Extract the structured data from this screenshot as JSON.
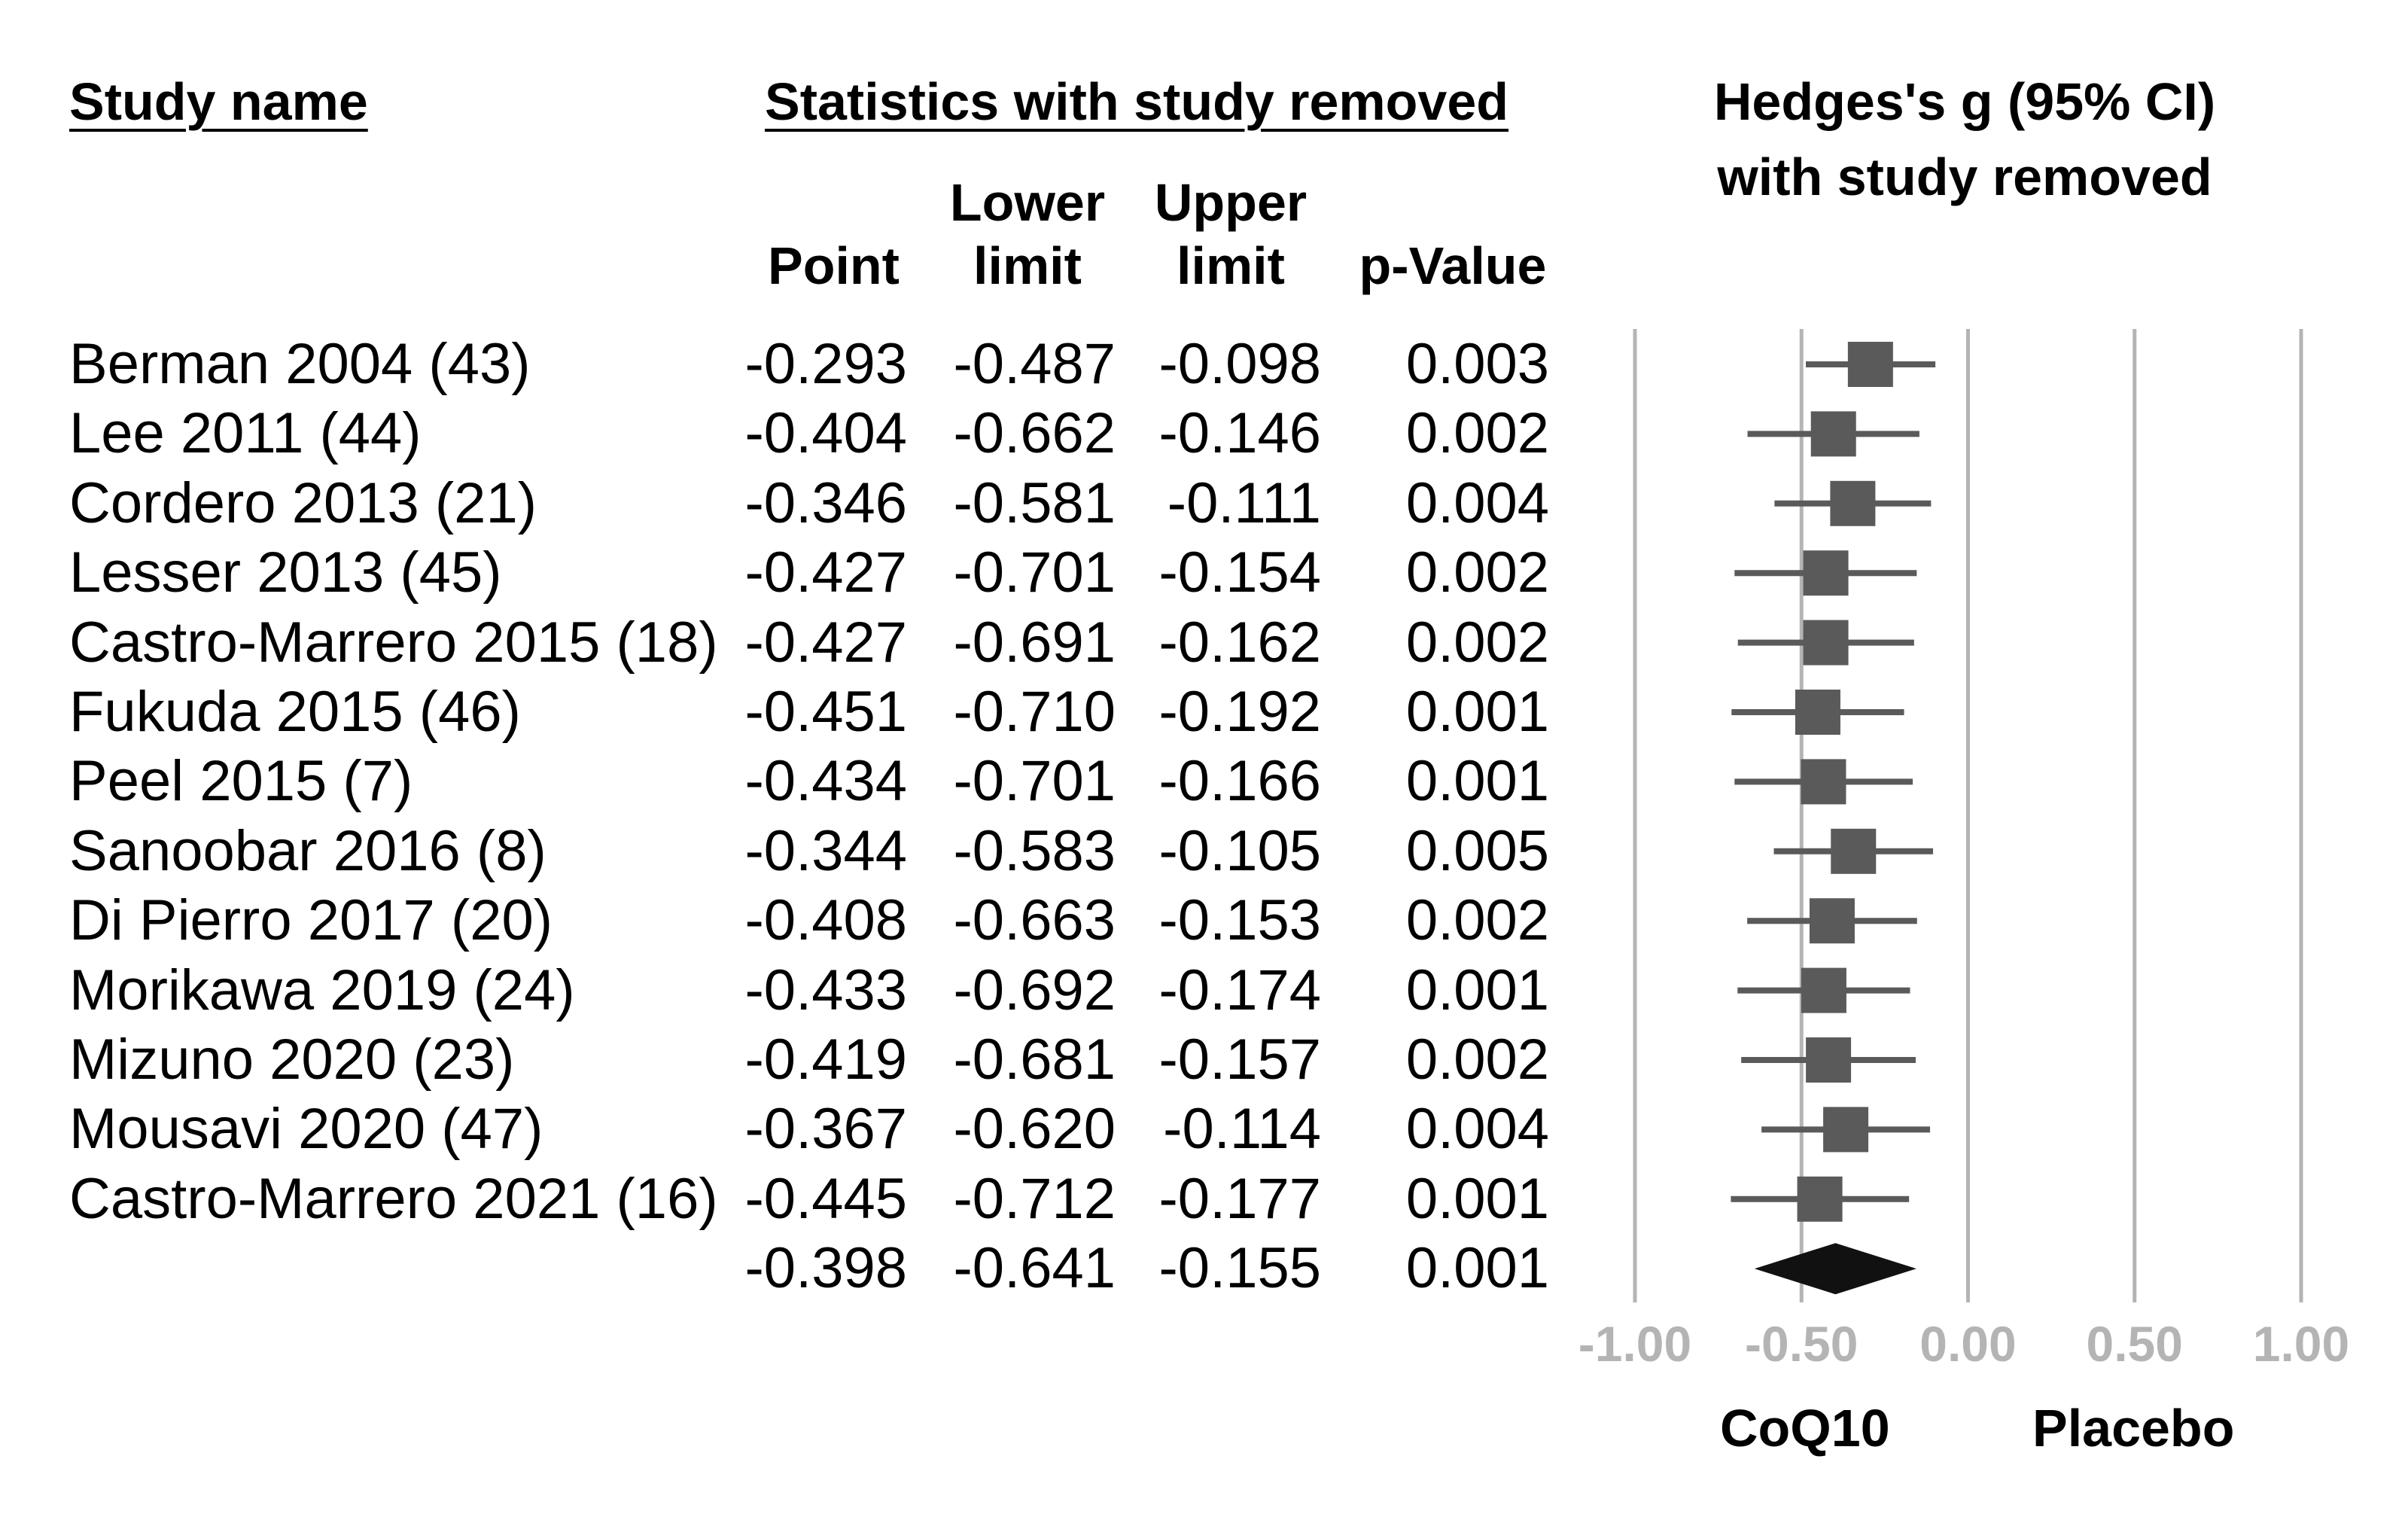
{
  "chart_data": {
    "type": "forest",
    "title": "Hedges's g (95% CI) with study removed",
    "headers": {
      "study_name": "Study name",
      "group": "Statistics with study removed",
      "point": "Point",
      "lower_top": "Lower",
      "lower_bottom": "limit",
      "upper_top": "Upper",
      "upper_bottom": "limit",
      "pvalue": "p-Value",
      "plot_line1": "Hedges's g (95% CI)",
      "plot_line2": "with study removed"
    },
    "studies": [
      {
        "name": "Berman 2004 (43)",
        "point": "-0.293",
        "lower": "-0.487",
        "upper": "-0.098",
        "p": "0.003",
        "g": -0.293,
        "lo": -0.487,
        "hi": -0.098
      },
      {
        "name": "Lee 2011 (44)",
        "point": "-0.404",
        "lower": "-0.662",
        "upper": "-0.146",
        "p": "0.002",
        "g": -0.404,
        "lo": -0.662,
        "hi": -0.146
      },
      {
        "name": "Cordero 2013 (21)",
        "point": "-0.346",
        "lower": "-0.581",
        "upper": "-0.111",
        "p": "0.004",
        "g": -0.346,
        "lo": -0.581,
        "hi": -0.111
      },
      {
        "name": "Lesser 2013 (45)",
        "point": "-0.427",
        "lower": "-0.701",
        "upper": "-0.154",
        "p": "0.002",
        "g": -0.427,
        "lo": -0.701,
        "hi": -0.154
      },
      {
        "name": "Castro-Marrero 2015 (18)",
        "point": "-0.427",
        "lower": "-0.691",
        "upper": "-0.162",
        "p": "0.002",
        "g": -0.427,
        "lo": -0.691,
        "hi": -0.162
      },
      {
        "name": "Fukuda 2015 (46)",
        "point": "-0.451",
        "lower": "-0.710",
        "upper": "-0.192",
        "p": "0.001",
        "g": -0.451,
        "lo": -0.71,
        "hi": -0.192
      },
      {
        "name": "Peel 2015 (7)",
        "point": "-0.434",
        "lower": "-0.701",
        "upper": "-0.166",
        "p": "0.001",
        "g": -0.434,
        "lo": -0.701,
        "hi": -0.166
      },
      {
        "name": "Sanoobar 2016 (8)",
        "point": "-0.344",
        "lower": "-0.583",
        "upper": "-0.105",
        "p": "0.005",
        "g": -0.344,
        "lo": -0.583,
        "hi": -0.105
      },
      {
        "name": "Di Pierro 2017 (20)",
        "point": "-0.408",
        "lower": "-0.663",
        "upper": "-0.153",
        "p": "0.002",
        "g": -0.408,
        "lo": -0.663,
        "hi": -0.153
      },
      {
        "name": "Morikawa 2019 (24)",
        "point": "-0.433",
        "lower": "-0.692",
        "upper": "-0.174",
        "p": "0.001",
        "g": -0.433,
        "lo": -0.692,
        "hi": -0.174
      },
      {
        "name": "Mizuno 2020 (23)",
        "point": "-0.419",
        "lower": "-0.681",
        "upper": "-0.157",
        "p": "0.002",
        "g": -0.419,
        "lo": -0.681,
        "hi": -0.157
      },
      {
        "name": "Mousavi 2020 (47)",
        "point": "-0.367",
        "lower": "-0.620",
        "upper": "-0.114",
        "p": "0.004",
        "g": -0.367,
        "lo": -0.62,
        "hi": -0.114
      },
      {
        "name": "Castro-Marrero 2021 (16)",
        "point": "-0.445",
        "lower": "-0.712",
        "upper": "-0.177",
        "p": "0.001",
        "g": -0.445,
        "lo": -0.712,
        "hi": -0.177
      }
    ],
    "summary": {
      "point": "-0.398",
      "lower": "-0.641",
      "upper": "-0.155",
      "p": "0.001",
      "g": -0.398,
      "lo": -0.641,
      "hi": -0.155
    },
    "x_ticks": [
      "-1.00",
      "-0.50",
      "0.00",
      "0.50",
      "1.00"
    ],
    "x_tick_values": [
      -1,
      -0.5,
      0,
      0.5,
      1
    ],
    "xlim": [
      -1,
      1
    ],
    "favours_left": "CoQ10",
    "favours_right": "Placebo",
    "colors": {
      "marker": "#5a5a5a",
      "summary": "#111111",
      "grid": "#b4b4b4",
      "tick_label": "#b4b4b4"
    }
  }
}
